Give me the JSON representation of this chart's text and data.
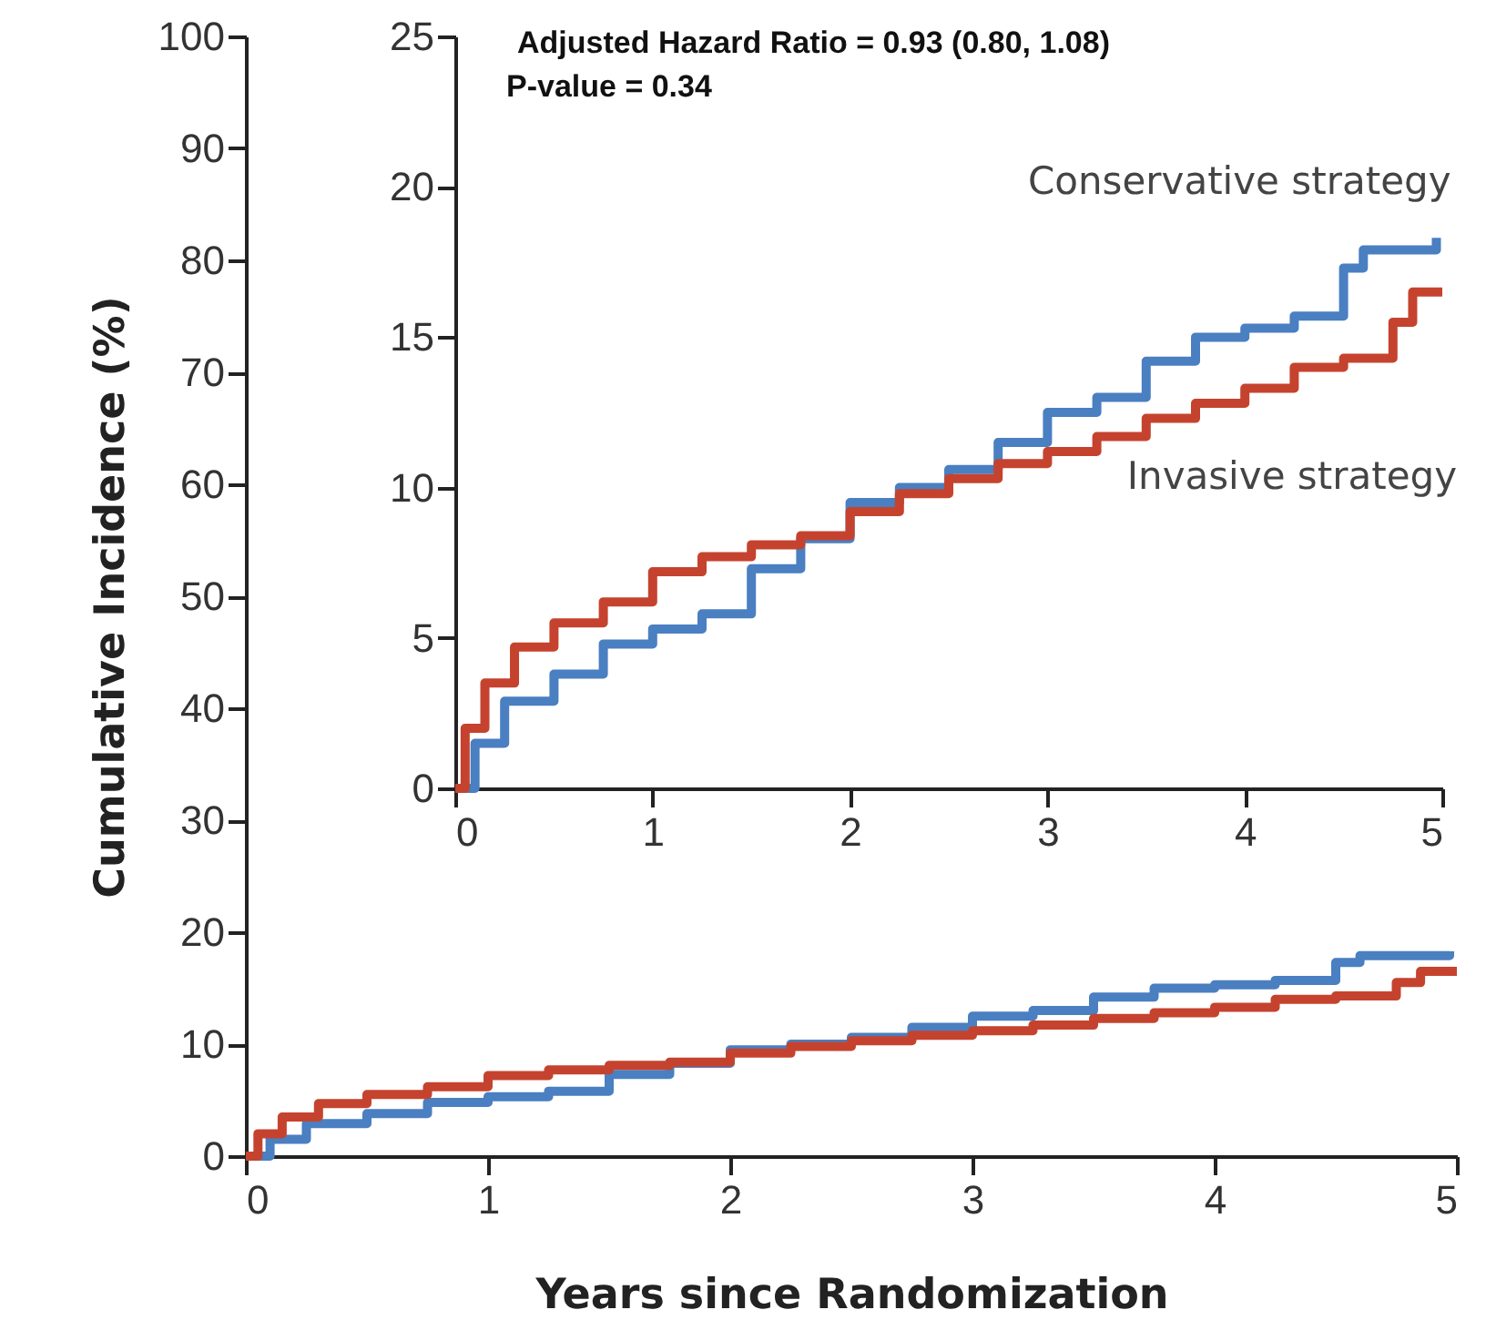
{
  "chart_data": [
    {
      "type": "step",
      "xlabel": "Years since Randomization",
      "ylabel": "Cumulative Incidence (%)",
      "xlim": [
        0,
        5
      ],
      "ylim": [
        0,
        100
      ],
      "xticks": [
        0,
        1,
        2,
        3,
        4,
        5
      ],
      "yticks": [
        0,
        10,
        20,
        30,
        40,
        50,
        60,
        70,
        80,
        90,
        100
      ],
      "grid": false,
      "legend": false,
      "series": [
        {
          "color": "#4a7fc1",
          "x": [
            0,
            0.1,
            0.25,
            0.5,
            0.75,
            1.0,
            1.25,
            1.5,
            1.75,
            2.0,
            2.25,
            2.5,
            2.75,
            3.0,
            3.25,
            3.5,
            3.75,
            4.0,
            4.25,
            4.5,
            4.6,
            4.9,
            4.97
          ],
          "values": [
            0,
            1.5,
            2.9,
            3.8,
            4.8,
            5.3,
            5.8,
            7.3,
            8.3,
            9.5,
            10.0,
            10.6,
            11.5,
            12.5,
            13.0,
            14.2,
            15.0,
            15.3,
            15.7,
            17.3,
            17.9,
            17.9,
            18.3
          ]
        },
        {
          "color": "#c5432e",
          "x": [
            0,
            0.05,
            0.15,
            0.3,
            0.5,
            0.75,
            1.0,
            1.25,
            1.5,
            1.75,
            2.0,
            2.25,
            2.5,
            2.75,
            3.0,
            3.25,
            3.5,
            3.75,
            4.0,
            4.25,
            4.5,
            4.75,
            4.85,
            5.0
          ],
          "values": [
            0,
            2.0,
            3.5,
            4.7,
            5.5,
            6.2,
            7.2,
            7.7,
            8.1,
            8.4,
            9.2,
            9.8,
            10.3,
            10.8,
            11.2,
            11.7,
            12.3,
            12.8,
            13.3,
            14.0,
            14.3,
            15.5,
            16.5,
            16.5
          ]
        }
      ]
    },
    {
      "type": "step",
      "xlim": [
        0,
        5
      ],
      "ylim": [
        0,
        25
      ],
      "xticks": [
        0,
        1,
        2,
        3,
        4,
        5
      ],
      "yticks": [
        0,
        5,
        10,
        15,
        20,
        25
      ],
      "grid": false,
      "legend": false,
      "annotations": [
        "Adjusted Hazard Ratio = 0.93 (0.80, 1.08)",
        "P-value = 0.34"
      ],
      "series": [
        {
          "name": "Conservative strategy",
          "color": "#4a7fc1",
          "x": [
            0,
            0.1,
            0.25,
            0.5,
            0.75,
            1.0,
            1.25,
            1.5,
            1.75,
            2.0,
            2.25,
            2.5,
            2.75,
            3.0,
            3.25,
            3.5,
            3.75,
            4.0,
            4.25,
            4.5,
            4.6,
            4.9,
            4.97
          ],
          "values": [
            0,
            1.5,
            2.9,
            3.8,
            4.8,
            5.3,
            5.8,
            7.3,
            8.3,
            9.5,
            10.0,
            10.6,
            11.5,
            12.5,
            13.0,
            14.2,
            15.0,
            15.3,
            15.7,
            17.3,
            17.9,
            17.9,
            18.3
          ]
        },
        {
          "name": "Invasive strategy",
          "color": "#c5432e",
          "x": [
            0,
            0.05,
            0.15,
            0.3,
            0.5,
            0.75,
            1.0,
            1.25,
            1.5,
            1.75,
            2.0,
            2.25,
            2.5,
            2.75,
            3.0,
            3.25,
            3.5,
            3.75,
            4.0,
            4.25,
            4.5,
            4.75,
            4.85,
            5.0
          ],
          "values": [
            0,
            2.0,
            3.5,
            4.7,
            5.5,
            6.2,
            7.2,
            7.7,
            8.1,
            8.4,
            9.2,
            9.8,
            10.3,
            10.8,
            11.2,
            11.7,
            12.3,
            12.8,
            13.3,
            14.0,
            14.3,
            15.5,
            16.5,
            16.5
          ]
        }
      ]
    }
  ]
}
